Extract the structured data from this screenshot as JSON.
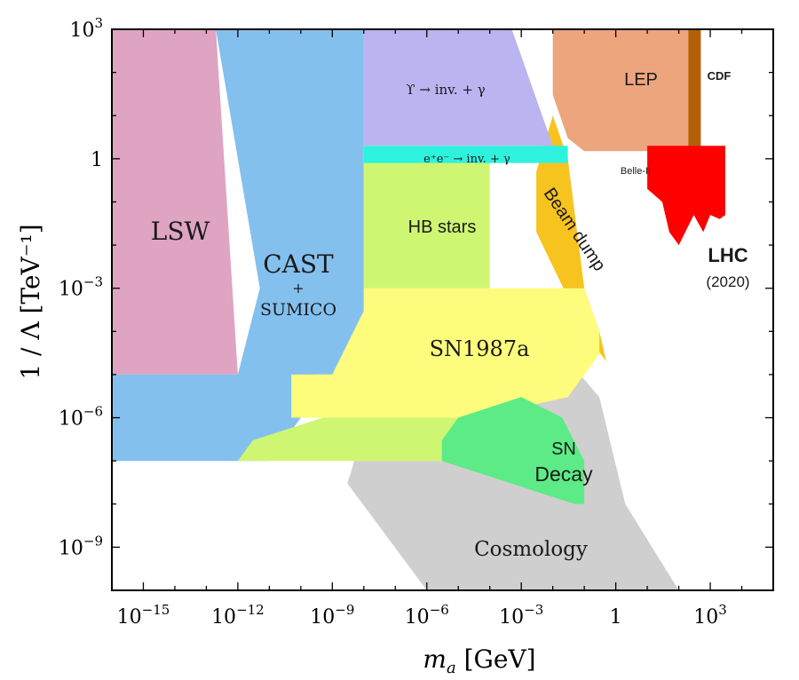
{
  "chart_data": {
    "type": "area",
    "xlabel_var": "m",
    "xlabel_sub": "a",
    "xlabel_unit": " [GeV]",
    "ylabel": "1 / Λ [TeV⁻¹]",
    "x_scale": "log",
    "y_scale": "log",
    "xlim": [
      1e-16,
      100000.0
    ],
    "ylim": [
      1e-10,
      1000
    ],
    "grid": false,
    "x_ticks": [
      {
        "value": 1e-15,
        "base": "10",
        "exp": "−15"
      },
      {
        "value": 1e-12,
        "base": "10",
        "exp": "−12"
      },
      {
        "value": 1e-09,
        "base": "10",
        "exp": "−9"
      },
      {
        "value": 1e-06,
        "base": "10",
        "exp": "−6"
      },
      {
        "value": 0.001,
        "base": "10",
        "exp": "−3"
      },
      {
        "value": 1,
        "base": "1",
        "exp": ""
      },
      {
        "value": 1000,
        "base": "10",
        "exp": "3"
      }
    ],
    "y_ticks": [
      {
        "value": 1000,
        "base": "10",
        "exp": "3"
      },
      {
        "value": 1,
        "base": "1",
        "exp": ""
      },
      {
        "value": 0.001,
        "base": "10",
        "exp": "−3"
      },
      {
        "value": 1e-06,
        "base": "10",
        "exp": "−6"
      },
      {
        "value": 1e-09,
        "base": "10",
        "exp": "−9"
      }
    ],
    "regions": [
      {
        "name": "Cosmology",
        "color": "#cfcfcf",
        "points": [
          [
            5e-09,
            1e-07
          ],
          [
            0.001,
            1e-07
          ],
          [
            0.003,
            0.0001
          ],
          [
            0.02,
            3e-05
          ],
          [
            0.3,
            3e-06
          ],
          [
            2,
            1e-08
          ],
          [
            100,
            1e-10
          ],
          [
            1e-06,
            1e-10
          ],
          [
            3e-09,
            3e-08
          ]
        ]
      },
      {
        "name": "Beam dump",
        "color": "#f7c31e",
        "points": [
          [
            0.003,
            0.5
          ],
          [
            0.01,
            10
          ],
          [
            0.03,
            1
          ],
          [
            0.1,
            0.001
          ],
          [
            0.3,
            0.0001
          ],
          [
            0.5,
            2e-05
          ],
          [
            0.1,
            0.0001
          ],
          [
            0.003,
            0.02
          ]
        ]
      },
      {
        "name": "LEP",
        "color": "#eca57d",
        "points": [
          [
            0.01,
            1000
          ],
          [
            200,
            1000
          ],
          [
            200,
            1.5
          ],
          [
            0.1,
            1.5
          ],
          [
            0.03,
            3
          ],
          [
            0.01,
            30
          ]
        ]
      },
      {
        "name": "CDF",
        "color": "#b56006",
        "points": [
          [
            200,
            1000
          ],
          [
            500,
            1000
          ],
          [
            500,
            1.5
          ],
          [
            200,
            1.5
          ]
        ]
      },
      {
        "name": "LHC",
        "color": "#ff0000",
        "points": [
          [
            10,
            2
          ],
          [
            3000,
            2
          ],
          [
            3000,
            0.05
          ],
          [
            2000,
            0.04
          ],
          [
            1000,
            0.05
          ],
          [
            600,
            0.02
          ],
          [
            300,
            0.05
          ],
          [
            100,
            0.01
          ],
          [
            50,
            0.02
          ],
          [
            30,
            0.1
          ],
          [
            10,
            0.2
          ]
        ]
      },
      {
        "name": "LSW",
        "color": "#dea4c2",
        "points": [
          [
            1e-16,
            1000
          ],
          [
            2e-13,
            1000
          ],
          [
            1e-12,
            1e-05
          ],
          [
            1e-16,
            1e-05
          ]
        ]
      },
      {
        "name": "CAST + SUMICO",
        "color": "#84c0ee",
        "points": [
          [
            2e-13,
            1000
          ],
          [
            5e-10,
            1000
          ],
          [
            1e-08,
            1000
          ],
          [
            1e-08,
            1e-05
          ],
          [
            3e-10,
            1e-05
          ],
          [
            1e-10,
            1e-06
          ],
          [
            1e-11,
            1e-07
          ],
          [
            1e-16,
            1e-07
          ],
          [
            1e-16,
            1e-05
          ],
          [
            1e-12,
            1e-05
          ],
          [
            5e-12,
            0.001
          ]
        ]
      },
      {
        "name": "HB stars",
        "color": "#cff673",
        "points": [
          [
            1e-08,
            1
          ],
          [
            0.0001,
            1
          ],
          [
            0.0001,
            0.001
          ],
          [
            1e-08,
            0.001
          ]
        ]
      },
      {
        "name": "SN1987a",
        "color": "#fdfc7c",
        "points": [
          [
            1e-08,
            0.001
          ],
          [
            0.1,
            0.001
          ],
          [
            0.3,
            0.0001
          ],
          [
            0.3,
            3e-05
          ],
          [
            0.03,
            3e-06
          ],
          [
            3e-05,
            1e-06
          ],
          [
            5e-11,
            1e-06
          ],
          [
            5e-11,
            1e-05
          ],
          [
            1e-09,
            1e-05
          ],
          [
            1e-08,
            0.0003
          ]
        ]
      },
      {
        "name": "HB low",
        "color": "#cff673",
        "points": [
          [
            5e-10,
            1e-06
          ],
          [
            1e-05,
            1e-06
          ],
          [
            3e-06,
            1e-07
          ],
          [
            1e-12,
            1e-07
          ],
          [
            3e-12,
            3e-07
          ]
        ]
      },
      {
        "name": "SN Decay",
        "color": "#5ceb86",
        "points": [
          [
            3e-06,
            3e-07
          ],
          [
            1e-05,
            1e-06
          ],
          [
            0.001,
            3e-06
          ],
          [
            0.02,
            1e-06
          ],
          [
            0.1,
            1e-07
          ],
          [
            0.1,
            1e-08
          ],
          [
            0.05,
            1e-08
          ],
          [
            3e-06,
            1e-07
          ]
        ]
      },
      {
        "name": "e+e- band",
        "color": "#2ff2de",
        "points": [
          [
            1e-08,
            2
          ],
          [
            0.03,
            2
          ],
          [
            0.03,
            0.8
          ],
          [
            1e-08,
            0.8
          ]
        ]
      },
      {
        "name": "Upsilon",
        "color": "#bab4f0",
        "points": [
          [
            1e-08,
            1000
          ],
          [
            0.0005,
            1000
          ],
          [
            0.01,
            2
          ],
          [
            1e-08,
            2
          ]
        ]
      }
    ],
    "labels": {
      "lsw": "LSW",
      "cast": "CAST",
      "plus": "+",
      "sumico": "SUMICO",
      "upsilon": "ϒ → inv. + γ",
      "ee": "e⁺e⁻ → inv. + γ",
      "hb": "HB stars",
      "sn1987a": "SN1987a",
      "sn": "SN",
      "decay": "Decay",
      "cosmology": "Cosmology",
      "beam_dump": "Beam dump",
      "lep": "LEP",
      "cdf": "CDF",
      "belle": "Belle-II",
      "lhc": "LHC",
      "lhc_year": "(2020)"
    }
  }
}
